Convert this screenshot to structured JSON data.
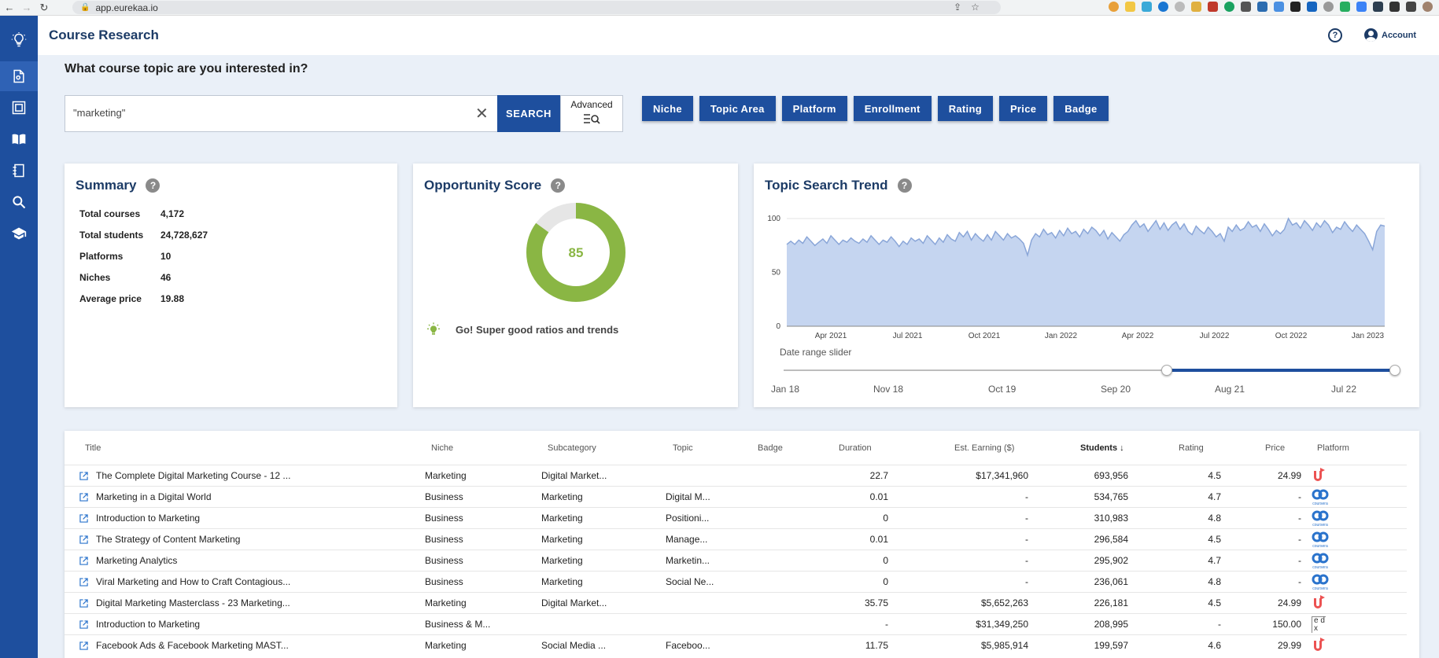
{
  "browser": {
    "url": "app.eurekaa.io",
    "nav_back": "←",
    "nav_forward": "→",
    "nav_reload": "↻"
  },
  "header": {
    "title": "Course Research",
    "help": "?",
    "account_label": "Account"
  },
  "search": {
    "question": "What course topic are you interested in?",
    "value": "\"marketing\"",
    "clear": "✕",
    "search_label": "SEARCH",
    "advanced_label": "Advanced"
  },
  "filters": [
    "Niche",
    "Topic Area",
    "Platform",
    "Enrollment",
    "Rating",
    "Price",
    "Badge"
  ],
  "summary": {
    "title": "Summary",
    "help": "?",
    "rows": [
      {
        "label": "Total courses",
        "value": "4,172"
      },
      {
        "label": "Total students",
        "value": "24,728,627"
      },
      {
        "label": "Platforms",
        "value": "10"
      },
      {
        "label": "Niches",
        "value": "46"
      },
      {
        "label": "Average price",
        "value": "19.88"
      }
    ]
  },
  "opportunity": {
    "title": "Opportunity Score",
    "help": "?",
    "score": "85",
    "score_fraction": 0.85,
    "note": "Go! Super good ratios and trends",
    "color_good": "#8ab644",
    "color_rest": "#e6e6e6"
  },
  "trend": {
    "title": "Topic Search Trend",
    "help": "?",
    "slider_label": "Date range slider",
    "slider_ticks": [
      "Jan 18",
      "Nov 18",
      "Oct 19",
      "Sep 20",
      "Aug 21",
      "Jul 22"
    ],
    "slider_range": [
      0.62,
      1.0
    ]
  },
  "chart_data": {
    "type": "area",
    "title": "Topic Search Trend",
    "xlabel": "",
    "ylabel": "",
    "ylim": [
      0,
      100
    ],
    "y_ticks": [
      "100",
      "50",
      "0"
    ],
    "x_ticks": [
      "Apr 2021",
      "Jul 2021",
      "Oct 2021",
      "Jan 2022",
      "Apr 2022",
      "Jul 2022",
      "Oct 2022",
      "Jan 2023"
    ],
    "grid": true,
    "fill_color": "#c5d5f0",
    "line_color": "#8aa6d8",
    "series": [
      {
        "values": [
          76,
          79,
          76,
          80,
          77,
          83,
          79,
          75,
          78,
          81,
          77,
          84,
          80,
          76,
          80,
          78,
          82,
          79,
          77,
          81,
          78,
          84,
          80,
          76,
          80,
          78,
          83,
          79,
          74,
          79,
          76,
          82,
          79,
          81,
          77,
          84,
          80,
          76,
          82,
          78,
          85,
          81,
          79,
          87,
          83,
          88,
          80,
          86,
          82,
          79,
          85,
          80,
          88,
          84,
          80,
          86,
          82,
          84,
          81,
          77,
          66,
          80,
          86,
          83,
          90,
          85,
          87,
          82,
          89,
          84,
          91,
          86,
          88,
          83,
          90,
          86,
          92,
          89,
          84,
          89,
          81,
          87,
          83,
          79,
          85,
          88,
          94,
          98,
          92,
          95,
          88,
          93,
          98,
          90,
          96,
          89,
          94,
          97,
          90,
          95,
          88,
          85,
          93,
          89,
          86,
          92,
          88,
          83,
          86,
          79,
          92,
          88,
          94,
          89,
          91,
          97,
          92,
          94,
          88,
          95,
          90,
          84,
          89,
          86,
          90,
          100,
          94,
          96,
          91,
          98,
          94,
          89,
          96,
          92,
          98,
          94,
          87,
          92,
          90,
          97,
          92,
          88,
          94,
          90,
          86,
          79,
          71,
          88,
          94,
          93
        ]
      }
    ]
  },
  "table": {
    "headers": [
      "Title",
      "Niche",
      "Subcategory",
      "Topic",
      "Badge",
      "Duration",
      "Est. Earning ($)",
      "Students ↓",
      "Rating",
      "Price",
      "Platform"
    ],
    "rows": [
      {
        "title": "The Complete Digital Marketing Course - 12 ...",
        "niche": "Marketing",
        "subcategory": "Digital Market...",
        "topic": "",
        "badge": "",
        "duration": "22.7",
        "earning": "$17,341,960",
        "students": "693,956",
        "rating": "4.5",
        "price": "24.99",
        "platform": "udemy"
      },
      {
        "title": "Marketing in a Digital World",
        "niche": "Business",
        "subcategory": "Marketing",
        "topic": "Digital M...",
        "badge": "",
        "duration": "0.01",
        "earning": "-",
        "students": "534,765",
        "rating": "4.7",
        "price": "-",
        "platform": "coursera"
      },
      {
        "title": "Introduction to Marketing",
        "niche": "Business",
        "subcategory": "Marketing",
        "topic": "Positioni...",
        "badge": "",
        "duration": "0",
        "earning": "-",
        "students": "310,983",
        "rating": "4.8",
        "price": "-",
        "platform": "coursera"
      },
      {
        "title": "The Strategy of Content Marketing",
        "niche": "Business",
        "subcategory": "Marketing",
        "topic": "Manage...",
        "badge": "",
        "duration": "0.01",
        "earning": "-",
        "students": "296,584",
        "rating": "4.5",
        "price": "-",
        "platform": "coursera"
      },
      {
        "title": "Marketing Analytics",
        "niche": "Business",
        "subcategory": "Marketing",
        "topic": "Marketin...",
        "badge": "",
        "duration": "0",
        "earning": "-",
        "students": "295,902",
        "rating": "4.7",
        "price": "-",
        "platform": "coursera"
      },
      {
        "title": "Viral Marketing and How to Craft Contagious...",
        "niche": "Business",
        "subcategory": "Marketing",
        "topic": "Social Ne...",
        "badge": "",
        "duration": "0",
        "earning": "-",
        "students": "236,061",
        "rating": "4.8",
        "price": "-",
        "platform": "coursera"
      },
      {
        "title": "Digital Marketing Masterclass - 23 Marketing...",
        "niche": "Marketing",
        "subcategory": "Digital Market...",
        "topic": "",
        "badge": "",
        "duration": "35.75",
        "earning": "$5,652,263",
        "students": "226,181",
        "rating": "4.5",
        "price": "24.99",
        "platform": "udemy"
      },
      {
        "title": "Introduction to Marketing",
        "niche": "Business & M...",
        "subcategory": "",
        "topic": "",
        "badge": "",
        "duration": "-",
        "earning": "$31,349,250",
        "students": "208,995",
        "rating": "-",
        "price": "150.00",
        "platform": "edx"
      },
      {
        "title": "Facebook Ads & Facebook Marketing MAST...",
        "niche": "Marketing",
        "subcategory": "Social Media ...",
        "topic": "Faceboo...",
        "badge": "",
        "duration": "11.75",
        "earning": "$5,985,914",
        "students": "199,597",
        "rating": "4.6",
        "price": "29.99",
        "platform": "udemy"
      }
    ]
  },
  "colors": {
    "brand": "#1e4f9e",
    "udemy": "#ec5252",
    "coursera": "#2a73cc"
  },
  "platform_text": {
    "coursera": "coursera",
    "edx": "e dx"
  }
}
